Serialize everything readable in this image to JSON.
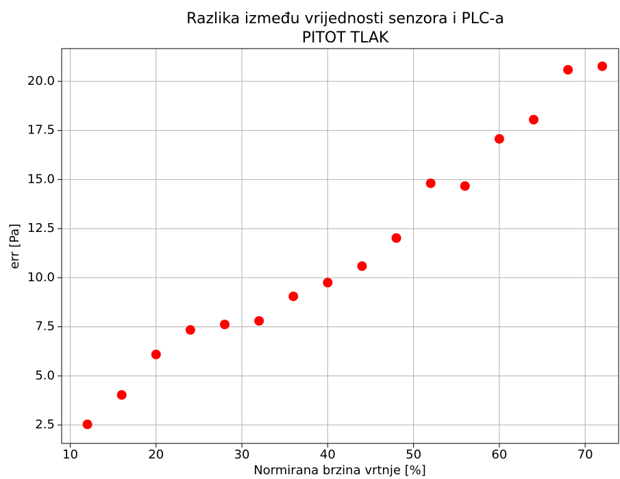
{
  "chart_data": {
    "type": "scatter",
    "title": "Razlika između vrijednosti senzora i PLC-a",
    "subtitle": "PITOT TLAK",
    "x_label": "Normirana brzina vrtnje [%]",
    "y_label": "err [Pa]",
    "x": [
      12,
      16,
      20,
      24,
      28,
      32,
      36,
      40,
      44,
      48,
      52,
      56,
      60,
      64,
      68,
      72
    ],
    "series": [
      {
        "name": "err",
        "color": "#ff0000",
        "values": [
          2.53,
          4.03,
          6.09,
          7.34,
          7.62,
          7.8,
          9.05,
          9.75,
          10.59,
          12.02,
          14.81,
          14.67,
          17.07,
          18.05,
          20.59,
          20.77
        ]
      }
    ],
    "xlim": [
      9.0,
      73.9
    ],
    "ylim": [
      1.56,
      21.67
    ],
    "xticks": [
      10,
      20,
      30,
      40,
      50,
      60,
      70
    ],
    "yticks": [
      2.5,
      {
        "value": 5,
        "label": "5.0"
      },
      7.5,
      {
        "value": 10,
        "label": "10.0"
      },
      12.5,
      {
        "value": 15,
        "label": "15.0"
      },
      17.5,
      {
        "value": 20,
        "label": "20.0"
      }
    ],
    "grid": true
  }
}
